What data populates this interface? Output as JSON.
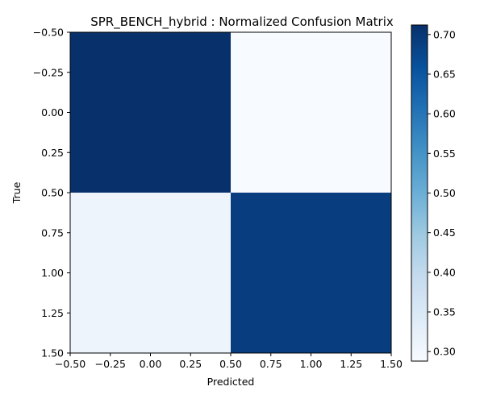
{
  "chart_data": {
    "type": "heatmap",
    "title": "SPR_BENCH_hybrid : Normalized Confusion Matrix",
    "xlabel": "Predicted",
    "ylabel": "True",
    "x_ticks": [
      "−0.50",
      "−0.25",
      "0.00",
      "0.25",
      "0.50",
      "0.75",
      "1.00",
      "1.25",
      "1.50"
    ],
    "y_ticks": [
      "−0.50",
      "−0.25",
      "0.00",
      "0.25",
      "0.50",
      "0.75",
      "1.00",
      "1.25",
      "1.50"
    ],
    "xlim": [
      -0.5,
      1.5
    ],
    "ylim": [
      1.5,
      -0.5
    ],
    "matrix": [
      [
        0.712,
        0.288
      ],
      [
        0.31,
        0.69
      ]
    ],
    "colormap": "Blues",
    "colorbar": {
      "min": 0.288,
      "max": 0.712,
      "ticks": [
        "0.30",
        "0.35",
        "0.40",
        "0.45",
        "0.50",
        "0.55",
        "0.60",
        "0.65",
        "0.70"
      ],
      "tick_values": [
        0.3,
        0.35,
        0.4,
        0.45,
        0.5,
        0.55,
        0.6,
        0.65,
        0.7
      ]
    }
  }
}
